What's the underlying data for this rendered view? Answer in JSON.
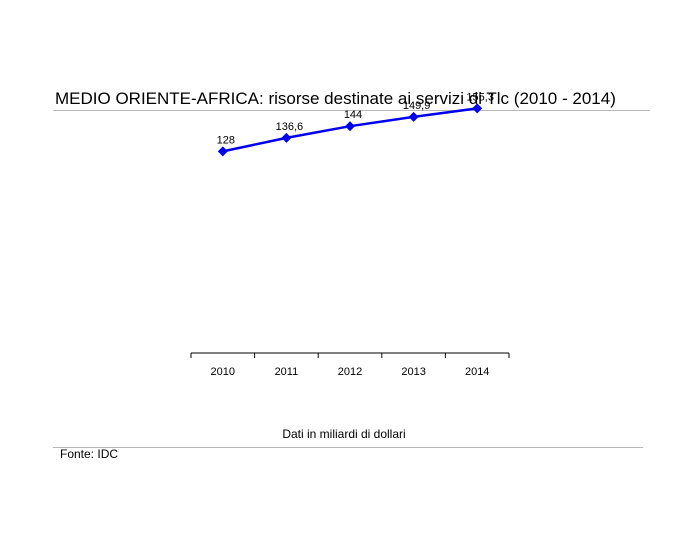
{
  "chart_data": {
    "type": "line",
    "title": "MEDIO ORIENTE-AFRICA: risorse destinate ai servizi di Tlc (2010 - 2014)",
    "categories": [
      "2010",
      "2011",
      "2012",
      "2013",
      "2014"
    ],
    "series": [
      {
        "values": [
          128,
          136.6,
          144,
          149.9,
          155.3
        ],
        "labels": [
          "128",
          "136,6",
          "144",
          "149,9",
          "155,3"
        ],
        "color": "#0000ee"
      }
    ],
    "ylim": [
      0,
      200
    ],
    "xlabel": "",
    "ylabel": "",
    "grid": false,
    "legend": "none"
  },
  "note": "Dati in miliardi di dollari",
  "source": "Fonte: IDC"
}
